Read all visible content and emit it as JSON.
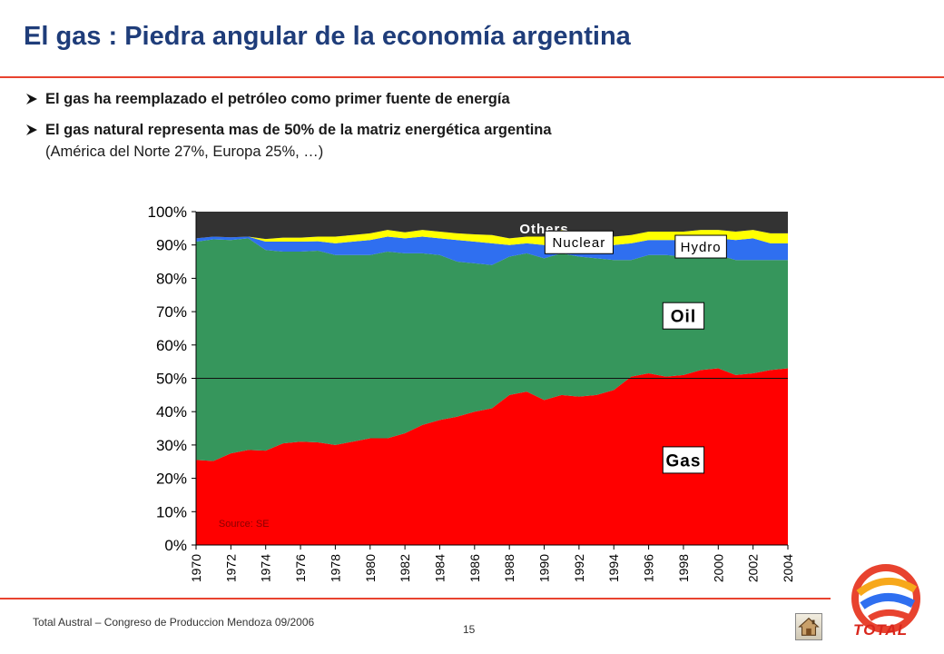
{
  "slide": {
    "title": "El gas : Piedra angular de la economía argentina",
    "bullets": [
      "El gas ha reemplazado el petróleo como primer fuente de energía",
      "El gas natural  representa  mas de 50% de la matriz energética argentina"
    ],
    "bullet_sub": "(América del Norte 27%, Europa 25%, …)",
    "footer": "Total Austral – Congreso de Produccion Mendoza 09/2006",
    "page_number": "15",
    "logo_text": "TOTAL",
    "colors": {
      "title": "#1f3d7a",
      "rule": "#e8432f"
    }
  },
  "chart_data": {
    "type": "area",
    "title": "",
    "xlabel": "",
    "ylabel": "",
    "x": [
      1970,
      1971,
      1972,
      1973,
      1974,
      1975,
      1976,
      1977,
      1978,
      1979,
      1980,
      1981,
      1982,
      1983,
      1984,
      1985,
      1986,
      1987,
      1988,
      1989,
      1990,
      1991,
      1992,
      1993,
      1994,
      1995,
      1996,
      1997,
      1998,
      1999,
      2000,
      2001,
      2002,
      2003,
      2004
    ],
    "xticks": [
      "1970",
      "1972",
      "1974",
      "1976",
      "1978",
      "1980",
      "1982",
      "1984",
      "1986",
      "1988",
      "1990",
      "1992",
      "1994",
      "1996",
      "1998",
      "2000",
      "2002",
      "2004"
    ],
    "yticks": [
      "0%",
      "10%",
      "20%",
      "30%",
      "40%",
      "50%",
      "60%",
      "70%",
      "80%",
      "90%",
      "100%"
    ],
    "ylim": [
      0,
      100
    ],
    "stacked": true,
    "reference_line": 50,
    "source": "Source: SE",
    "series": [
      {
        "name": "Gas",
        "color": "#ff0000",
        "values": [
          25.5,
          25.2,
          27.5,
          28.5,
          28.3,
          30.5,
          31.0,
          30.8,
          30.0,
          31.0,
          32.0,
          32.0,
          33.5,
          36.0,
          37.5,
          38.5,
          40.0,
          41.0,
          45.0,
          46.0,
          43.5,
          45.0,
          44.5,
          45.0,
          46.5,
          50.5,
          51.5,
          50.5,
          51.0,
          52.5,
          53.0,
          51.0,
          51.5,
          52.5,
          53.0
        ]
      },
      {
        "name": "Oil",
        "color": "#36965c",
        "values": [
          65.5,
          66.5,
          64.0,
          63.5,
          60.2,
          57.5,
          57.0,
          57.5,
          57.0,
          56.0,
          55.0,
          56.0,
          54.0,
          51.5,
          49.5,
          46.5,
          44.5,
          43.0,
          41.5,
          41.5,
          42.5,
          42.5,
          42.0,
          41.0,
          39.0,
          35.0,
          35.5,
          36.5,
          35.5,
          34.0,
          34.0,
          34.5,
          34.0,
          33.0,
          32.5
        ]
      },
      {
        "name": "Hydro",
        "color": "#2f6ff0",
        "values": [
          1.0,
          0.8,
          0.8,
          0.5,
          2.5,
          3.0,
          3.0,
          2.8,
          3.5,
          4.0,
          4.5,
          4.5,
          4.5,
          5.0,
          5.0,
          6.5,
          6.5,
          6.5,
          3.5,
          3.0,
          4.0,
          4.5,
          4.0,
          4.5,
          4.5,
          5.0,
          4.5,
          4.5,
          5.0,
          5.5,
          5.0,
          6.0,
          6.5,
          5.0,
          5.0
        ]
      },
      {
        "name": "Nuclear",
        "color": "#ffff00",
        "values": [
          0.0,
          0.0,
          0.0,
          0.0,
          0.8,
          1.2,
          1.2,
          1.4,
          2.0,
          2.0,
          2.0,
          2.0,
          1.8,
          2.0,
          2.0,
          2.0,
          2.2,
          2.5,
          2.0,
          2.0,
          2.5,
          2.5,
          2.5,
          2.5,
          2.5,
          2.5,
          2.5,
          2.5,
          2.5,
          2.5,
          2.5,
          2.5,
          2.5,
          3.0,
          3.0
        ]
      },
      {
        "name": "Others",
        "color": "#333333",
        "values": [
          8.0,
          7.5,
          7.7,
          7.5,
          8.2,
          7.8,
          7.8,
          7.5,
          7.5,
          7.0,
          6.5,
          5.5,
          6.2,
          5.5,
          6.0,
          6.5,
          6.8,
          7.0,
          8.0,
          7.5,
          7.5,
          5.5,
          7.0,
          7.0,
          7.5,
          7.0,
          6.0,
          6.0,
          6.0,
          5.5,
          5.5,
          6.0,
          5.5,
          6.5,
          6.5
        ]
      }
    ],
    "labels": [
      {
        "series": "Others",
        "text": "Others",
        "style": "plain-white"
      },
      {
        "series": "Nuclear",
        "text": "Nuclear",
        "style": "box"
      },
      {
        "series": "Hydro",
        "text": "Hydro",
        "style": "box"
      },
      {
        "series": "Oil",
        "text": "Oil",
        "style": "box-bold"
      },
      {
        "series": "Gas",
        "text": "Gas",
        "style": "box-bold"
      }
    ]
  }
}
